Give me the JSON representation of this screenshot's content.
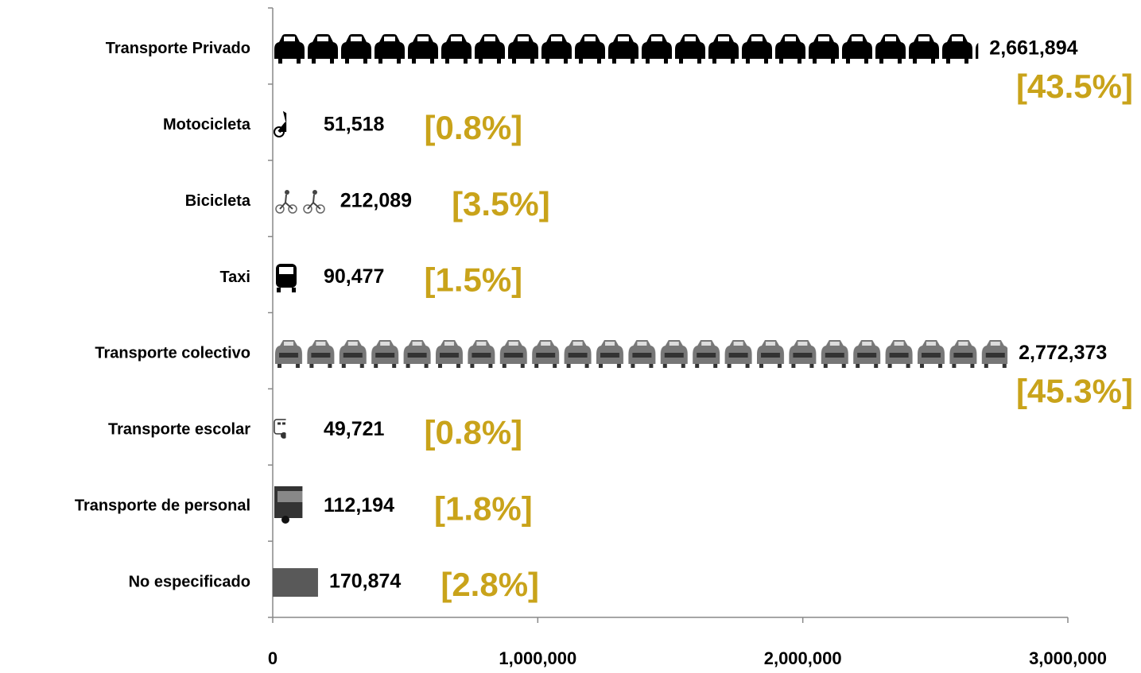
{
  "chart_data": {
    "type": "bar",
    "orientation": "horizontal",
    "categories": [
      "Transporte Privado",
      "Motocicleta",
      "Bicicleta",
      "Taxi",
      "Transporte colectivo",
      "Transporte escolar",
      "Transporte de personal",
      "No especificado"
    ],
    "values": [
      2661894,
      51518,
      212089,
      90477,
      2772373,
      49721,
      112194,
      170874
    ],
    "value_labels": [
      "2,661,894",
      "51,518",
      "212,089",
      "90,477",
      "2,772,373",
      "49,721",
      "112,194",
      "170,874"
    ],
    "share_labels": [
      "[43.5%]",
      "[0.8%]",
      "[3.5%]",
      "[1.5%]",
      "[45.3%]",
      "[0.8%]",
      "[1.8%]",
      "[2.8%]"
    ],
    "color": "#595959",
    "xlim": [
      0,
      3000000
    ],
    "xticks": [
      0,
      {
        "value": 1000000,
        "label": "1,000,000"
      },
      {
        "value": 2000000,
        "label": "2,000,000"
      },
      {
        "value": 3000000,
        "label": "3,000,000"
      }
    ]
  }
}
